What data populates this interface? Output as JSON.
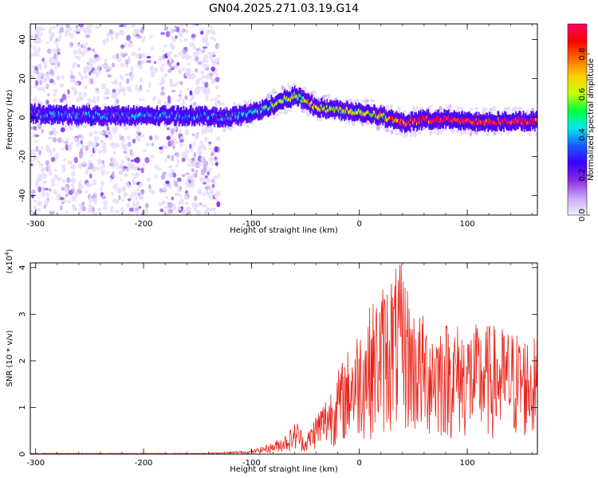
{
  "title": "GN04.2025.271.03.19.G14",
  "chart_data": [
    {
      "type": "heatmap",
      "xlabel": "Height of straight line (km)",
      "ylabel": "Frequency (Hz)",
      "xlim": [
        -305,
        165
      ],
      "ylim": [
        -50,
        48
      ],
      "x_ticks": [
        -300,
        -200,
        -100,
        0,
        100
      ],
      "x_tick_labels": [
        "-300",
        "-200",
        "-100",
        "0",
        "100"
      ],
      "y_ticks": [
        -40,
        -20,
        0,
        20,
        40
      ],
      "y_tick_labels": [
        "-40",
        "-20",
        "0",
        "20",
        "40"
      ],
      "colorbar": {
        "label": "Normalized spectral amplitude",
        "range": [
          0,
          0.95
        ],
        "ticks": [
          0.0,
          0.2,
          0.4,
          0.6,
          0.8
        ],
        "tick_labels": [
          "0.0",
          "0.2",
          "0.4",
          "0.6",
          "0.8"
        ],
        "colors": [
          "#f4eefe",
          "#c9a6f5",
          "#8a2be2",
          "#3a00ff",
          "#1a5cff",
          "#00e8f0",
          "#00ff40",
          "#c8ff00",
          "#ffd000",
          "#ff6a00",
          "#ff0000",
          "#ff0066"
        ]
      },
      "ridge": {
        "x": [
          -305,
          -250,
          -200,
          -150,
          -130,
          -110,
          -90,
          -75,
          -60,
          -50,
          -40,
          -20,
          0,
          20,
          40,
          60,
          80,
          100,
          120,
          140,
          165
        ],
        "frequency": [
          2,
          1,
          1,
          1,
          0,
          1,
          4,
          8,
          11,
          9,
          5,
          4,
          3,
          1,
          -3,
          -1,
          -1,
          -2,
          -2,
          -2,
          -2
        ],
        "amplitude": [
          0.25,
          0.3,
          0.3,
          0.3,
          0.3,
          0.35,
          0.45,
          0.5,
          0.6,
          0.65,
          0.7,
          0.6,
          0.6,
          0.65,
          0.8,
          0.9,
          0.9,
          0.9,
          0.92,
          0.92,
          0.9
        ]
      },
      "noise_x_range": [
        -305,
        -130
      ]
    },
    {
      "type": "line",
      "xlabel": "Height of straight line (km)",
      "ylabel": "SNR (10 * v/v)",
      "y_multiplier": "(x10",
      "y_multiplier_exp": "4",
      "xlim": [
        -305,
        165
      ],
      "ylim": [
        0,
        4.1
      ],
      "x_ticks": [
        -300,
        -200,
        -100,
        0,
        100
      ],
      "x_tick_labels": [
        "-300",
        "-200",
        "-100",
        "0",
        "100"
      ],
      "y_ticks": [
        0,
        1,
        2,
        3,
        4
      ],
      "y_tick_labels": [
        "0",
        "1",
        "2",
        "3",
        "4"
      ],
      "color": "#e8261c",
      "envelope": {
        "x": [
          -305,
          -150,
          -120,
          -100,
          -80,
          -65,
          -58,
          -50,
          -40,
          -30,
          -20,
          -10,
          0,
          10,
          20,
          30,
          40,
          50,
          60,
          80,
          100,
          120,
          140,
          165
        ],
        "peak": [
          0.02,
          0.02,
          0.05,
          0.08,
          0.25,
          0.5,
          0.75,
          0.35,
          0.9,
          1.3,
          1.8,
          2.3,
          2.8,
          3.2,
          3.6,
          4.0,
          4.1,
          3.2,
          3.0,
          2.9,
          2.8,
          2.8,
          2.7,
          2.5
        ]
      }
    }
  ]
}
